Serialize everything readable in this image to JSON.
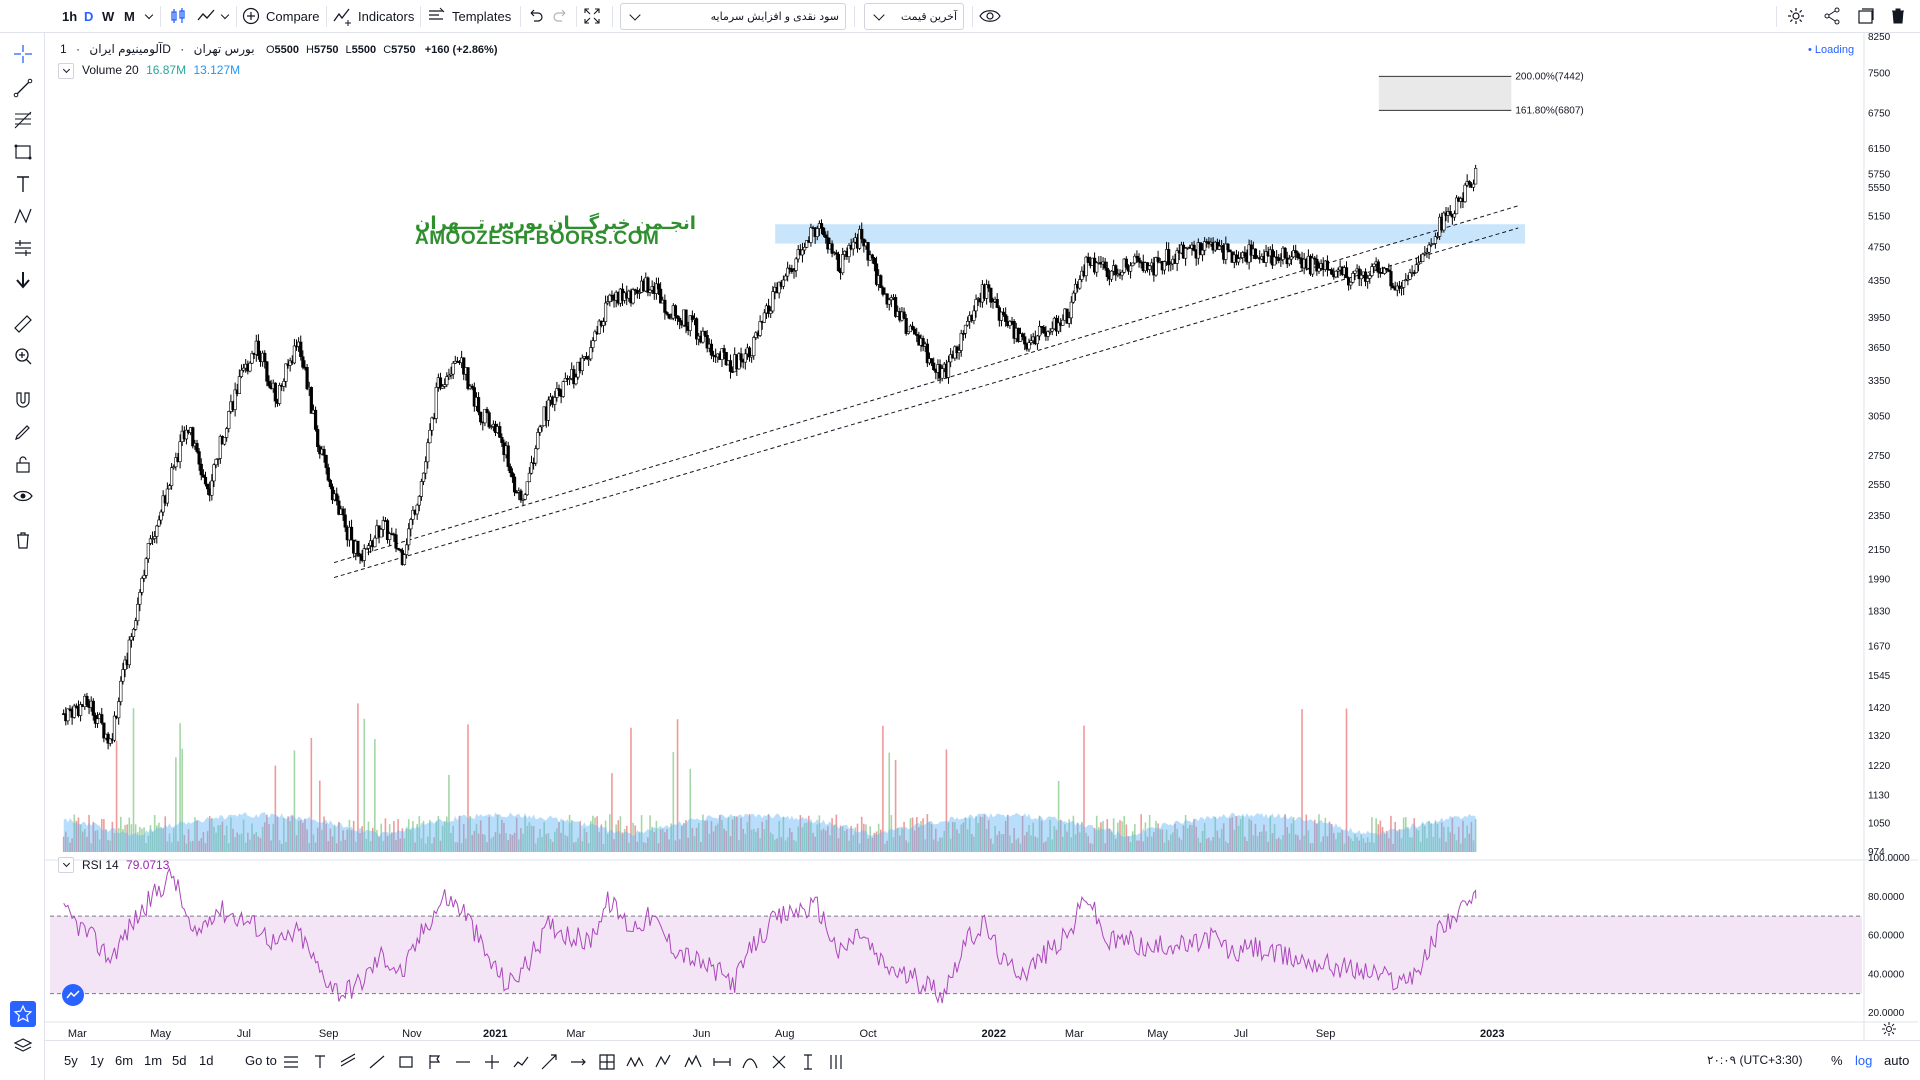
{
  "toolbar": {
    "intervals": [
      "1h",
      "D",
      "W",
      "M"
    ],
    "active_interval": "D",
    "compare_label": "Compare",
    "indicators_label": "Indicators",
    "templates_label": "Templates",
    "select_1": "سود نقدی و افزایش سرمایه",
    "select_2": "آخرین قیمت"
  },
  "header": {
    "symbol": "آلومینیوم ایران",
    "interval": "1D",
    "exchange": "بورس تهران",
    "open_label": "O",
    "open": "5500",
    "high_label": "H",
    "high": "5750",
    "low_label": "L",
    "low": "5500",
    "close_label": "C",
    "close": "5750",
    "change": "+160 (+2.86%)",
    "loading": "• Loading"
  },
  "volume_legend": {
    "label": "Volume 20",
    "v1": "16.87M",
    "v2": "13.127M"
  },
  "rsi_legend": {
    "label": "RSI 14",
    "value": "79.0713"
  },
  "watermark": {
    "line1": "انجـمن خبرگـــان بورس تـــهران",
    "line2": "AMOOZESH-BOORS.COM"
  },
  "fib_labels": [
    "200.00%(7442)",
    "161.80%(6807)"
  ],
  "bottom": {
    "ranges": [
      "5y",
      "1y",
      "6m",
      "1m",
      "5d",
      "1d"
    ],
    "goto": "Go to",
    "timezone": "۲۰:۰۹ (UTC+3:30)",
    "percent": "%",
    "log": "log",
    "auto": "auto"
  },
  "colors": {
    "up": "#a5d6a7",
    "down": "#ef9a9a",
    "candle": "#000000",
    "volume_ma": "#64b5f6",
    "rsi": "#ab47bc",
    "rsi_band": "#f3e5f5",
    "accent": "#2962ff",
    "zone": "#bbdefb",
    "watermark": "#2f8f2f"
  },
  "chart_data": {
    "type": "candlestick",
    "price_axis": [
      "8250",
      "7500",
      "6750",
      "6150",
      "5750",
      "5550",
      "5150",
      "4750",
      "4350",
      "3950",
      "3650",
      "3350",
      "3050",
      "2750",
      "2550",
      "2350",
      "2150",
      "1990",
      "1830",
      "1670",
      "1545",
      "1420",
      "1320",
      "1220",
      "1130",
      "1050",
      "974"
    ],
    "rsi_axis": [
      "100.0000",
      "80.0000",
      "60.0000",
      "40.0000",
      "20.0000"
    ],
    "x_ticks": [
      "Mar",
      "May",
      "Jul",
      "Sep",
      "Nov",
      "2021",
      "Mar",
      "Jun",
      "Aug",
      "Oct",
      "2022",
      "Mar",
      "May",
      "Jul",
      "Sep",
      "2023"
    ],
    "scale": "log",
    "price_range": [
      974,
      8250
    ],
    "close_path": [
      [
        "2020-02-20",
        1400
      ],
      [
        "2020-03-10",
        1440
      ],
      [
        "2020-03-25",
        1300
      ],
      [
        "2020-04-05",
        1580
      ],
      [
        "2020-04-20",
        2100
      ],
      [
        "2020-05-05",
        2500
      ],
      [
        "2020-05-20",
        3000
      ],
      [
        "2020-06-05",
        2500
      ],
      [
        "2020-06-20",
        3100
      ],
      [
        "2020-07-10",
        3700
      ],
      [
        "2020-07-25",
        3200
      ],
      [
        "2020-08-10",
        3750
      ],
      [
        "2020-08-25",
        2800
      ],
      [
        "2020-09-10",
        2350
      ],
      [
        "2020-09-25",
        2080
      ],
      [
        "2020-10-10",
        2300
      ],
      [
        "2020-10-25",
        2120
      ],
      [
        "2020-11-10",
        2650
      ],
      [
        "2020-11-20",
        3300
      ],
      [
        "2020-12-05",
        3600
      ],
      [
        "2020-12-20",
        3100
      ],
      [
        "2021-01-05",
        2900
      ],
      [
        "2021-01-20",
        2400
      ],
      [
        "2021-02-05",
        3050
      ],
      [
        "2021-02-20",
        3300
      ],
      [
        "2021-03-10",
        3550
      ],
      [
        "2021-03-25",
        4150
      ],
      [
        "2021-04-10",
        4200
      ],
      [
        "2021-04-25",
        4350
      ],
      [
        "2021-05-10",
        4000
      ],
      [
        "2021-05-25",
        3900
      ],
      [
        "2021-06-10",
        3600
      ],
      [
        "2021-06-25",
        3500
      ],
      [
        "2021-07-10",
        3700
      ],
      [
        "2021-07-25",
        4200
      ],
      [
        "2021-08-10",
        4600
      ],
      [
        "2021-08-25",
        5050
      ],
      [
        "2021-09-10",
        4500
      ],
      [
        "2021-09-25",
        4900
      ],
      [
        "2021-10-10",
        4300
      ],
      [
        "2021-10-25",
        3950
      ],
      [
        "2021-11-10",
        3650
      ],
      [
        "2021-11-25",
        3400
      ],
      [
        "2021-12-10",
        3800
      ],
      [
        "2021-12-25",
        4250
      ],
      [
        "2022-01-10",
        3900
      ],
      [
        "2022-01-25",
        3700
      ],
      [
        "2022-02-10",
        3850
      ],
      [
        "2022-02-25",
        4000
      ],
      [
        "2022-03-10",
        4600
      ],
      [
        "2022-03-25",
        4450
      ],
      [
        "2022-04-10",
        4550
      ],
      [
        "2022-04-25",
        4500
      ],
      [
        "2022-05-10",
        4650
      ],
      [
        "2022-05-25",
        4700
      ],
      [
        "2022-06-10",
        4800
      ],
      [
        "2022-06-25",
        4650
      ],
      [
        "2022-07-10",
        4700
      ],
      [
        "2022-07-25",
        4650
      ],
      [
        "2022-08-10",
        4600
      ],
      [
        "2022-08-25",
        4520
      ],
      [
        "2022-09-10",
        4450
      ],
      [
        "2022-09-25",
        4380
      ],
      [
        "2022-10-10",
        4500
      ],
      [
        "2022-10-25",
        4300
      ],
      [
        "2022-11-05",
        4450
      ],
      [
        "2022-11-15",
        4750
      ],
      [
        "2022-11-25",
        5100
      ],
      [
        "2022-12-10",
        5400
      ],
      [
        "2022-12-20",
        5750
      ]
    ],
    "last_bar": {
      "open": 5500,
      "high": 5750,
      "low": 5500,
      "close": 5750,
      "change": 160,
      "change_pct": 2.86
    },
    "volume": {
      "ma_length": 20,
      "last": "16.87M",
      "ma": "13.127M"
    },
    "rsi": {
      "length": 14,
      "last": 79.0713,
      "levels": [
        70,
        30
      ],
      "range": [
        20,
        100
      ],
      "path": [
        [
          "2020-02-20",
          72
        ],
        [
          "2020-03-10",
          60
        ],
        [
          "2020-03-25",
          48
        ],
        [
          "2020-04-10",
          66
        ],
        [
          "2020-04-25",
          80
        ],
        [
          "2020-05-10",
          92
        ],
        [
          "2020-05-25",
          58
        ],
        [
          "2020-06-10",
          74
        ],
        [
          "2020-06-25",
          70
        ],
        [
          "2020-07-10",
          65
        ],
        [
          "2020-07-25",
          55
        ],
        [
          "2020-08-10",
          62
        ],
        [
          "2020-08-25",
          42
        ],
        [
          "2020-09-10",
          30
        ],
        [
          "2020-09-25",
          36
        ],
        [
          "2020-10-10",
          50
        ],
        [
          "2020-10-25",
          40
        ],
        [
          "2020-11-10",
          64
        ],
        [
          "2020-11-25",
          80
        ],
        [
          "2020-12-10",
          72
        ],
        [
          "2020-12-25",
          50
        ],
        [
          "2021-01-10",
          34
        ],
        [
          "2021-01-25",
          46
        ],
        [
          "2021-02-10",
          66
        ],
        [
          "2021-02-25",
          60
        ],
        [
          "2021-03-10",
          56
        ],
        [
          "2021-03-25",
          78
        ],
        [
          "2021-04-10",
          64
        ],
        [
          "2021-04-25",
          70
        ],
        [
          "2021-05-10",
          55
        ],
        [
          "2021-05-25",
          48
        ],
        [
          "2021-06-10",
          42
        ],
        [
          "2021-06-25",
          36
        ],
        [
          "2021-07-10",
          56
        ],
        [
          "2021-07-25",
          68
        ],
        [
          "2021-08-10",
          73
        ],
        [
          "2021-08-25",
          75
        ],
        [
          "2021-09-10",
          50
        ],
        [
          "2021-09-25",
          62
        ],
        [
          "2021-10-10",
          46
        ],
        [
          "2021-10-25",
          40
        ],
        [
          "2021-11-10",
          36
        ],
        [
          "2021-11-25",
          30
        ],
        [
          "2021-12-10",
          55
        ],
        [
          "2021-12-25",
          66
        ],
        [
          "2022-01-10",
          44
        ],
        [
          "2022-01-25",
          42
        ],
        [
          "2022-02-10",
          52
        ],
        [
          "2022-02-25",
          60
        ],
        [
          "2022-03-10",
          82
        ],
        [
          "2022-03-25",
          56
        ],
        [
          "2022-04-10",
          58
        ],
        [
          "2022-04-25",
          52
        ],
        [
          "2022-05-10",
          56
        ],
        [
          "2022-05-25",
          54
        ],
        [
          "2022-06-10",
          60
        ],
        [
          "2022-06-25",
          50
        ],
        [
          "2022-07-10",
          54
        ],
        [
          "2022-07-25",
          50
        ],
        [
          "2022-08-10",
          48
        ],
        [
          "2022-08-25",
          46
        ],
        [
          "2022-09-10",
          44
        ],
        [
          "2022-09-25",
          42
        ],
        [
          "2022-10-10",
          40
        ],
        [
          "2022-10-25",
          36
        ],
        [
          "2022-11-10",
          44
        ],
        [
          "2022-11-25",
          66
        ],
        [
          "2022-12-10",
          72
        ],
        [
          "2022-12-20",
          79.07
        ]
      ]
    },
    "drawings": {
      "resistance_zone": [
        4800,
        5050
      ],
      "fib_box": [
        6807,
        7442
      ],
      "trendlines": [
        [
          [
            "2020-09-05",
            2080
          ],
          [
            "2023-01-20",
            5300
          ]
        ],
        [
          [
            "2020-09-05",
            2000
          ],
          [
            "2023-01-20",
            5000
          ]
        ]
      ]
    }
  }
}
